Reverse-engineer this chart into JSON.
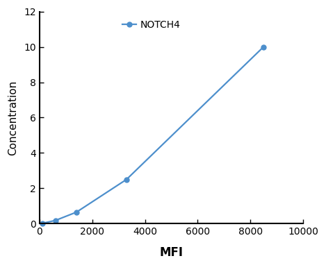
{
  "x": [
    100,
    600,
    1400,
    3300,
    8500
  ],
  "y": [
    0.02,
    0.18,
    0.65,
    2.5,
    10.0
  ],
  "line_color": "#4d8fcc",
  "marker": "o",
  "marker_size": 5,
  "line_width": 1.6,
  "label": "NOTCH4",
  "xlabel": "MFI",
  "ylabel": "Concentration",
  "xlim": [
    0,
    10000
  ],
  "ylim": [
    0,
    12
  ],
  "xticks": [
    0,
    2000,
    4000,
    6000,
    8000,
    10000
  ],
  "yticks": [
    0,
    2,
    4,
    6,
    8,
    10,
    12
  ],
  "xlabel_fontsize": 12,
  "ylabel_fontsize": 11,
  "legend_fontsize": 10,
  "tick_fontsize": 10,
  "background_color": "#ffffff"
}
